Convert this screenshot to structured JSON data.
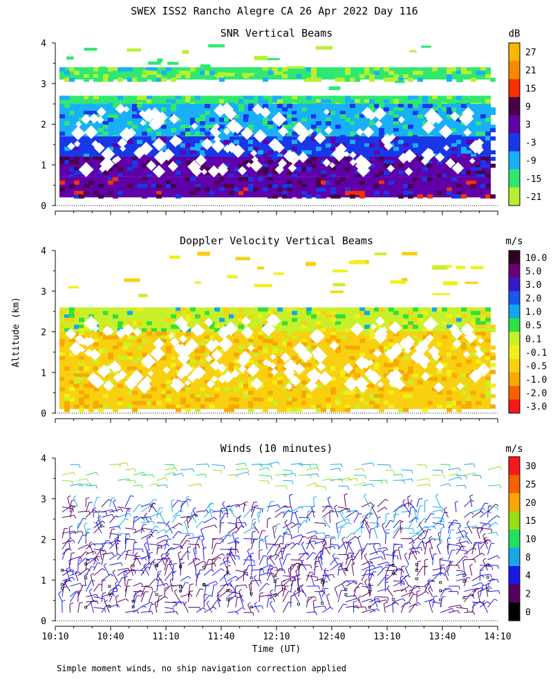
{
  "figure": {
    "title": "SWEX ISS2 Rancho Alegre CA  26 Apr 2022 Day 116",
    "ylabel": "Altitude (km)",
    "xlabel": "Time (UT)",
    "footnote": "Simple moment winds, no ship navigation correction applied"
  },
  "chart_data": [
    {
      "type": "heatmap",
      "title": "SNR Vertical Beams",
      "unit": "dB",
      "x_ticks": [
        "10:10",
        "10:40",
        "11:10",
        "11:40",
        "12:10",
        "12:40",
        "13:10",
        "13:40",
        "14:10"
      ],
      "y_ticks": [
        0,
        1,
        2,
        3,
        4
      ],
      "ylim": [
        0,
        4
      ],
      "colorbar": {
        "labels": [
          "27",
          "21",
          "15",
          "9",
          "3",
          "-3",
          "-9",
          "-15",
          "-21"
        ],
        "colors": [
          "#f8b800",
          "#f88800",
          "#f83000",
          "#480048",
          "#6000a8",
          "#1838e8",
          "#18b0f8",
          "#30e870",
          "#b8f030"
        ]
      },
      "layers": [
        {
          "alt_min": 3.1,
          "alt_max": 3.4,
          "value": -18
        },
        {
          "alt_min": 2.5,
          "alt_max": 2.7,
          "value": -15
        },
        {
          "alt_min": 1.7,
          "alt_max": 2.5,
          "value": -9
        },
        {
          "alt_min": 1.2,
          "alt_max": 1.7,
          "value": -3
        },
        {
          "alt_min": 0.7,
          "alt_max": 1.2,
          "value": 3
        },
        {
          "alt_min": 0.2,
          "alt_max": 0.7,
          "value": 5
        }
      ]
    },
    {
      "type": "heatmap",
      "title": "Doppler Velocity Vertical Beams",
      "unit": "m/s",
      "x_ticks": [
        "10:10",
        "10:40",
        "11:10",
        "11:40",
        "12:10",
        "12:40",
        "13:10",
        "13:40",
        "14:10"
      ],
      "y_ticks": [
        0,
        1,
        2,
        3,
        4
      ],
      "ylim": [
        0,
        4
      ],
      "colorbar": {
        "labels": [
          "10.0",
          "5.0",
          "3.0",
          "2.0",
          "1.0",
          "0.5",
          "0.1",
          "-0.1",
          "-0.5",
          "-1.0",
          "-2.0",
          "-3.0"
        ],
        "colors": [
          "#300020",
          "#6a0078",
          "#3818c8",
          "#1858f0",
          "#10a8f0",
          "#30e040",
          "#c8f028",
          "#f0f018",
          "#f8d010",
          "#f8a800",
          "#f86000",
          "#f81818"
        ]
      },
      "layers": [
        {
          "alt_min": 2.0,
          "alt_max": 2.6,
          "value": 0.1
        },
        {
          "alt_min": 0.1,
          "alt_max": 2.0,
          "value": -0.5
        }
      ]
    },
    {
      "type": "scatter",
      "title": "Winds (10 minutes)",
      "unit": "m/s",
      "x_ticks": [
        "10:10",
        "10:40",
        "11:10",
        "11:40",
        "12:10",
        "12:40",
        "13:10",
        "13:40",
        "14:10"
      ],
      "y_ticks": [
        0,
        1,
        2,
        3,
        4
      ],
      "ylim": [
        0,
        4
      ],
      "colorbar": {
        "labels": [
          "30",
          "25",
          "20",
          "15",
          "10",
          "8",
          "4",
          "2",
          "0"
        ],
        "colors": [
          "#f81818",
          "#f86000",
          "#f8a800",
          "#98e010",
          "#20e060",
          "#18a8e8",
          "#1818e8",
          "#580060",
          "#000000"
        ]
      },
      "series": [
        {
          "altitude_min": 0.2,
          "altitude_max": 2.8,
          "typical_speed": 4
        },
        {
          "altitude_min": 3.3,
          "altitude_max": 4.0,
          "typical_speed": 10
        }
      ]
    }
  ]
}
